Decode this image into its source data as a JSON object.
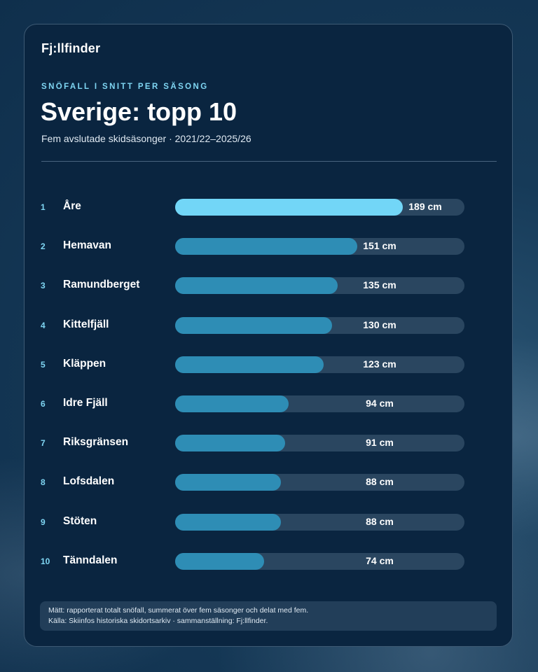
{
  "brand": "Fj:llfinder",
  "eyebrow": "SNÖFALL I SNITT PER SÄSONG",
  "title": "Sverige: topp 10",
  "subtitle": "Fem avslutade skidsäsonger · 2021/22–2025/26",
  "colors": {
    "top_bar": "#72d6f7",
    "bar": "#2e8db5",
    "rank": "#7fd6f3",
    "card": "#0a2540"
  },
  "chart_data": {
    "type": "bar",
    "orientation": "horizontal",
    "unit": "cm",
    "xlim": [
      0,
      240
    ],
    "ranks": [
      "1",
      "2",
      "3",
      "4",
      "5",
      "6",
      "7",
      "8",
      "9",
      "10"
    ],
    "categories": [
      "Åre",
      "Hemavan",
      "Ramundberget",
      "Kittelfjäll",
      "Kläppen",
      "Idre Fjäll",
      "Riksgränsen",
      "Lofsdalen",
      "Stöten",
      "Tänndalen"
    ],
    "values": [
      189,
      151,
      135,
      130,
      123,
      94,
      91,
      88,
      88,
      74
    ],
    "value_labels": [
      "189 cm",
      "151 cm",
      "135 cm",
      "130 cm",
      "123 cm",
      "94 cm",
      "91 cm",
      "88 cm",
      "88 cm",
      "74 cm"
    ]
  },
  "footnote": {
    "line1": "Mätt: rapporterat totalt snöfall, summerat över fem säsonger och delat med fem.",
    "line2": "Källa: Skiinfos historiska skidortsarkiv · sammanställning: Fj:llfinder."
  }
}
